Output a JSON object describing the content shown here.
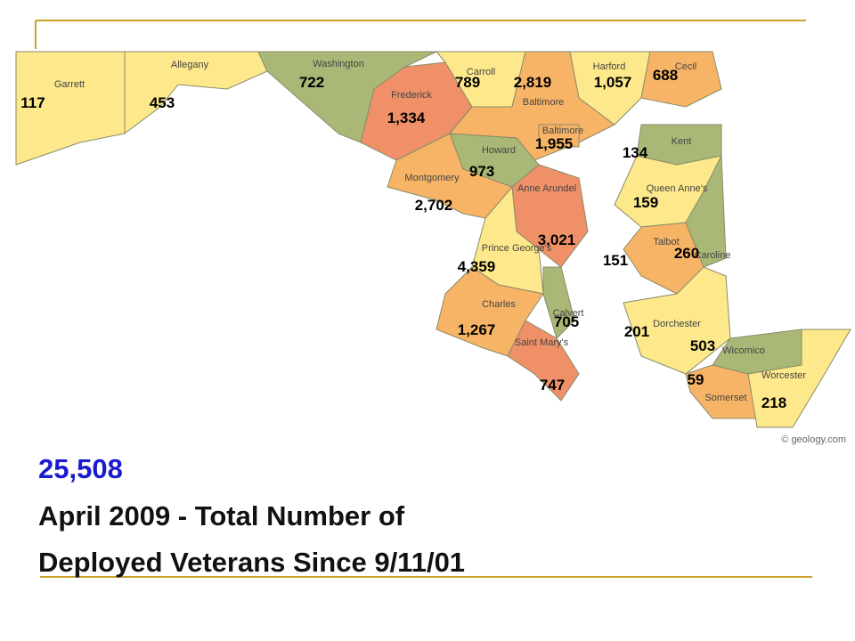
{
  "map": {
    "counties": [
      {
        "name": "Garrett",
        "count": "117"
      },
      {
        "name": "Allegany",
        "count": "453"
      },
      {
        "name": "Washington",
        "count": "722"
      },
      {
        "name": "Frederick",
        "count": "1,334"
      },
      {
        "name": "Carroll",
        "count": "789"
      },
      {
        "name": "Baltimore",
        "count": "2,819"
      },
      {
        "name": "Harford",
        "count": "1,057"
      },
      {
        "name": "Cecil",
        "count": "688"
      },
      {
        "name": "Baltimore",
        "count": "1,955"
      },
      {
        "name": "Howard",
        "count": "973"
      },
      {
        "name": "Montgomery",
        "count": "2,702"
      },
      {
        "name": "Anne Arundel",
        "count": "3,021"
      },
      {
        "name": "Prince George's",
        "count": "4,359"
      },
      {
        "name": "Charles",
        "count": "1,267"
      },
      {
        "name": "Calvert",
        "count": "705"
      },
      {
        "name": "Saint Mary's",
        "count": "747"
      },
      {
        "name": "Kent",
        "count": "134"
      },
      {
        "name": "Queen Anne's",
        "count": "159"
      },
      {
        "name": "Talbot",
        "count": "151"
      },
      {
        "name": "Caroline",
        "count": "260"
      },
      {
        "name": "Dorchester",
        "count": "201"
      },
      {
        "name": "Wicomico",
        "count": "503"
      },
      {
        "name": "Somerset",
        "count": "59"
      },
      {
        "name": "Worcester",
        "count": "218"
      }
    ],
    "credit": "© geology.com"
  },
  "caption": {
    "total": "25,508",
    "line1": "April 2009 - Total Number of",
    "line2": "Deployed Veterans Since 9/11/01"
  }
}
